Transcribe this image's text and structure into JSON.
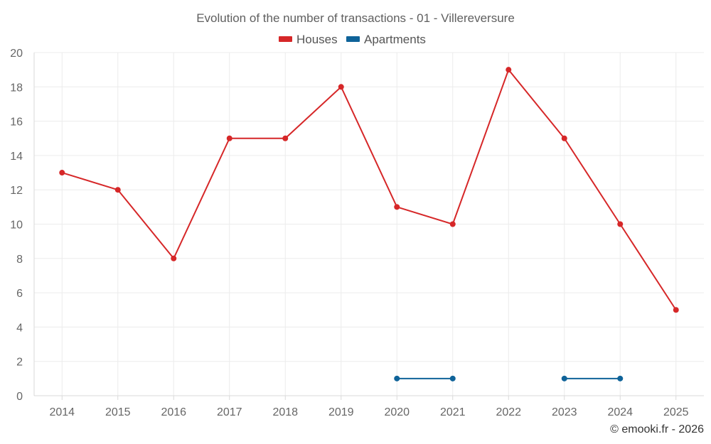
{
  "chart_data": {
    "type": "line",
    "title": "Evolution of the number of transactions - 01 - Villereversure",
    "xlabel": "",
    "ylabel": "",
    "categories": [
      "2014",
      "2015",
      "2016",
      "2017",
      "2018",
      "2019",
      "2020",
      "2021",
      "2022",
      "2023",
      "2024",
      "2025"
    ],
    "yticks": [
      "0",
      "2",
      "4",
      "6",
      "8",
      "10",
      "12",
      "14",
      "16",
      "18",
      "20"
    ],
    "ylim": [
      0,
      20
    ],
    "grid": true,
    "legend_position": "top-center",
    "series": [
      {
        "name": "Houses",
        "color": "#d62728",
        "values": [
          13,
          12,
          8,
          15,
          15,
          18,
          11,
          10,
          19,
          15,
          10,
          5
        ]
      },
      {
        "name": "Apartments",
        "color": "#0f6399",
        "values": [
          null,
          null,
          null,
          null,
          null,
          null,
          1,
          1,
          null,
          1,
          1,
          null
        ]
      }
    ],
    "credit": "© emooki.fr - 2026"
  }
}
